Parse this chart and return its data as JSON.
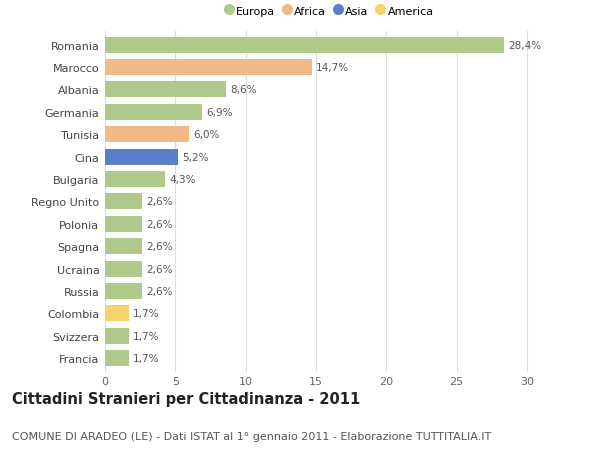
{
  "countries": [
    "Romania",
    "Marocco",
    "Albania",
    "Germania",
    "Tunisia",
    "Cina",
    "Bulgaria",
    "Regno Unito",
    "Polonia",
    "Spagna",
    "Ucraina",
    "Russia",
    "Colombia",
    "Svizzera",
    "Francia"
  ],
  "values": [
    28.4,
    14.7,
    8.6,
    6.9,
    6.0,
    5.2,
    4.3,
    2.6,
    2.6,
    2.6,
    2.6,
    2.6,
    1.7,
    1.7,
    1.7
  ],
  "labels": [
    "28,4%",
    "14,7%",
    "8,6%",
    "6,9%",
    "6,0%",
    "5,2%",
    "4,3%",
    "2,6%",
    "2,6%",
    "2,6%",
    "2,6%",
    "2,6%",
    "1,7%",
    "1,7%",
    "1,7%"
  ],
  "continents": [
    "Europa",
    "Africa",
    "Europa",
    "Europa",
    "Africa",
    "Asia",
    "Europa",
    "Europa",
    "Europa",
    "Europa",
    "Europa",
    "Europa",
    "America",
    "Europa",
    "Europa"
  ],
  "continent_colors": {
    "Europa": "#aec98a",
    "Africa": "#f0b986",
    "Asia": "#5b7ec9",
    "America": "#f5d26b"
  },
  "legend_order": [
    "Europa",
    "Africa",
    "Asia",
    "America"
  ],
  "bar_height": 0.72,
  "xlim": [
    0,
    32
  ],
  "xticks": [
    0,
    5,
    10,
    15,
    20,
    25,
    30
  ],
  "title": "Cittadini Stranieri per Cittadinanza - 2011",
  "subtitle": "COMUNE DI ARADEO (LE) - Dati ISTAT al 1° gennaio 2011 - Elaborazione TUTTITALIA.IT",
  "title_fontsize": 10.5,
  "subtitle_fontsize": 8,
  "label_fontsize": 7.5,
  "tick_fontsize": 8,
  "bg_color": "#ffffff",
  "grid_color": "#dddddd"
}
